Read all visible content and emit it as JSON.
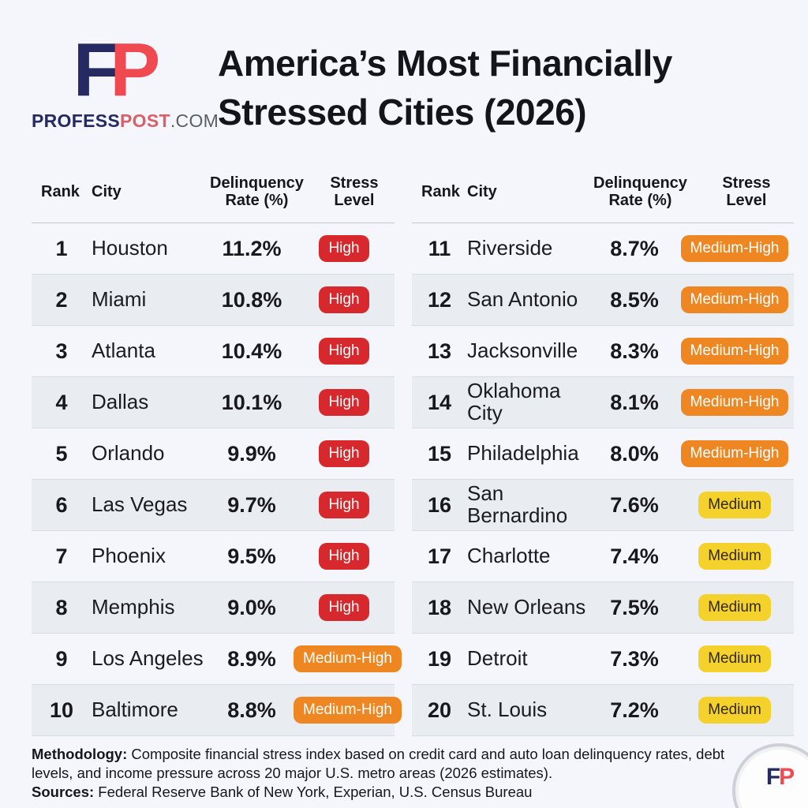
{
  "brand": {
    "logo_f": "F",
    "logo_p": "P",
    "site_name_primary": "PROFESS",
    "site_name_secondary": "POST",
    "site_tld": ".COM"
  },
  "title": {
    "line1": "America’s Most Financially",
    "line2": "Stressed Cities (2026)"
  },
  "table": {
    "headers": {
      "rank": "Rank",
      "city": "City",
      "rate_line1": "Delinquency",
      "rate_line2": "Rate (%)",
      "stress_line1": "Stress",
      "stress_line2": "Level"
    },
    "left_rows": [
      {
        "rank": "1",
        "city": "Houston",
        "rate": "11.2%",
        "stress": "High"
      },
      {
        "rank": "2",
        "city": "Miami",
        "rate": "10.8%",
        "stress": "High"
      },
      {
        "rank": "3",
        "city": "Atlanta",
        "rate": "10.4%",
        "stress": "High"
      },
      {
        "rank": "4",
        "city": "Dallas",
        "rate": "10.1%",
        "stress": "High"
      },
      {
        "rank": "5",
        "city": "Orlando",
        "rate": "9.9%",
        "stress": "High"
      },
      {
        "rank": "6",
        "city": "Las Vegas",
        "rate": "9.7%",
        "stress": "High"
      },
      {
        "rank": "7",
        "city": "Phoenix",
        "rate": "9.5%",
        "stress": "High"
      },
      {
        "rank": "8",
        "city": "Memphis",
        "rate": "9.0%",
        "stress": "High"
      },
      {
        "rank": "9",
        "city": "Los Angeles",
        "rate": "8.9%",
        "stress": "Medium-High"
      },
      {
        "rank": "10",
        "city": "Baltimore",
        "rate": "8.8%",
        "stress": "Medium-High"
      }
    ],
    "right_rows": [
      {
        "rank": "11",
        "city": "Riverside",
        "rate": "8.7%",
        "stress": "Medium-High"
      },
      {
        "rank": "12",
        "city": "San Antonio",
        "rate": "8.5%",
        "stress": "Medium-High"
      },
      {
        "rank": "13",
        "city": "Jacksonville",
        "rate": "8.3%",
        "stress": "Medium-High"
      },
      {
        "rank": "14",
        "city": "Oklahoma City",
        "rate": "8.1%",
        "stress": "Medium-High"
      },
      {
        "rank": "15",
        "city": "Philadelphia",
        "rate": "8.0%",
        "stress": "Medium-High"
      },
      {
        "rank": "16",
        "city": "San Bernardino",
        "rate": "7.6%",
        "stress": "Medium"
      },
      {
        "rank": "17",
        "city": "Charlotte",
        "rate": "7.4%",
        "stress": "Medium"
      },
      {
        "rank": "18",
        "city": "New Orleans",
        "rate": "7.5%",
        "stress": "Medium"
      },
      {
        "rank": "19",
        "city": "Detroit",
        "rate": "7.3%",
        "stress": "Medium"
      },
      {
        "rank": "20",
        "city": "St. Louis",
        "rate": "7.2%",
        "stress": "Medium"
      }
    ]
  },
  "stress_levels": {
    "High": {
      "bg": "#d7282d",
      "color": "#ffffff"
    },
    "Medium-High": {
      "bg": "#ee8722",
      "color": "#ffffff"
    },
    "Medium": {
      "bg": "#f5d22b",
      "color": "#33290a"
    }
  },
  "footer": {
    "methodology_label": "Methodology:",
    "methodology_text": " Composite financial stress index based on credit card and auto loan delinquency rates, debt levels, and income pressure across 20 major U.S. metro areas (2026 estimates).",
    "sources_label": "Sources:",
    "sources_text": " Federal Reserve Bank of New York, Experian, U.S. Census Bureau"
  },
  "chart_data": {
    "type": "table",
    "title": "America’s Most Financially Stressed Cities (2026)",
    "columns": [
      "Rank",
      "City",
      "Delinquency Rate (%)",
      "Stress Level"
    ],
    "rows": [
      [
        1,
        "Houston",
        11.2,
        "High"
      ],
      [
        2,
        "Miami",
        10.8,
        "High"
      ],
      [
        3,
        "Atlanta",
        10.4,
        "High"
      ],
      [
        4,
        "Dallas",
        10.1,
        "High"
      ],
      [
        5,
        "Orlando",
        9.9,
        "High"
      ],
      [
        6,
        "Las Vegas",
        9.7,
        "High"
      ],
      [
        7,
        "Phoenix",
        9.5,
        "High"
      ],
      [
        8,
        "Memphis",
        9.0,
        "High"
      ],
      [
        9,
        "Los Angeles",
        8.9,
        "Medium-High"
      ],
      [
        10,
        "Baltimore",
        8.8,
        "Medium-High"
      ],
      [
        11,
        "Riverside",
        8.7,
        "Medium-High"
      ],
      [
        12,
        "San Antonio",
        8.5,
        "Medium-High"
      ],
      [
        13,
        "Jacksonville",
        8.3,
        "Medium-High"
      ],
      [
        14,
        "Oklahoma City",
        8.1,
        "Medium-High"
      ],
      [
        15,
        "Philadelphia",
        8.0,
        "Medium-High"
      ],
      [
        16,
        "San Bernardino",
        7.6,
        "Medium"
      ],
      [
        17,
        "Charlotte",
        7.4,
        "Medium"
      ],
      [
        18,
        "New Orleans",
        7.5,
        "Medium"
      ],
      [
        19,
        "Detroit",
        7.3,
        "Medium"
      ],
      [
        20,
        "St. Louis",
        7.2,
        "Medium"
      ]
    ]
  }
}
